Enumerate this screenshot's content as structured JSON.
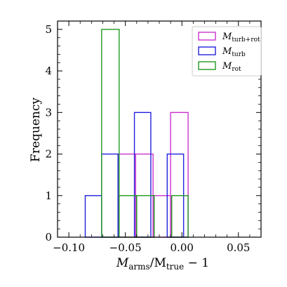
{
  "chart_data": {
    "type": "histogram",
    "title": "",
    "xlabel": {
      "main": "M",
      "sub": "arms",
      "mid": "/M",
      "sub2": "true",
      "tail": " − 1"
    },
    "ylabel": "Frequency",
    "xlim": [
      -0.11,
      0.07
    ],
    "ylim": [
      0,
      5.2
    ],
    "xticks": [
      -0.1,
      -0.05,
      0.0,
      0.05
    ],
    "xtick_labels": [
      "−0.10",
      "−0.05",
      "0.00",
      "0.05"
    ],
    "yticks": [
      0,
      1,
      2,
      3,
      4,
      5
    ],
    "ytick_labels": [
      "0",
      "1",
      "2",
      "3",
      "4",
      "5"
    ],
    "grid": false,
    "legend_position": "top-right",
    "series": [
      {
        "name": "M_turb+rot",
        "legend": {
          "main": "M",
          "sub": "turb+rot"
        },
        "color": "#cc33cc",
        "bins": [
          {
            "x0": -0.0565,
            "x1": -0.041,
            "count": 2
          },
          {
            "x0": -0.041,
            "x1": -0.0255,
            "count": 2
          },
          {
            "x0": -0.0255,
            "x1": -0.01,
            "count": 1
          },
          {
            "x0": -0.01,
            "x1": 0.0055,
            "count": 3
          }
        ]
      },
      {
        "name": "M_turb",
        "legend": {
          "main": "M",
          "sub": "turb"
        },
        "color": "#2222dd",
        "bins": [
          {
            "x0": -0.0855,
            "x1": -0.071,
            "count": 1
          },
          {
            "x0": -0.071,
            "x1": -0.0565,
            "count": 2
          },
          {
            "x0": -0.0565,
            "x1": -0.042,
            "count": 0
          },
          {
            "x0": -0.042,
            "x1": -0.0275,
            "count": 3
          },
          {
            "x0": -0.0275,
            "x1": -0.013,
            "count": 0
          },
          {
            "x0": -0.013,
            "x1": 0.0015,
            "count": 2
          }
        ]
      },
      {
        "name": "M_rot",
        "legend": {
          "main": "M",
          "sub": "rot"
        },
        "color": "#229922",
        "bins": [
          {
            "x0": -0.071,
            "x1": -0.0555,
            "count": 5
          },
          {
            "x0": -0.0555,
            "x1": -0.04,
            "count": 1
          },
          {
            "x0": -0.04,
            "x1": -0.0245,
            "count": 1
          },
          {
            "x0": -0.0245,
            "x1": -0.009,
            "count": 0
          },
          {
            "x0": -0.009,
            "x1": 0.0055,
            "count": 1
          }
        ]
      }
    ]
  }
}
